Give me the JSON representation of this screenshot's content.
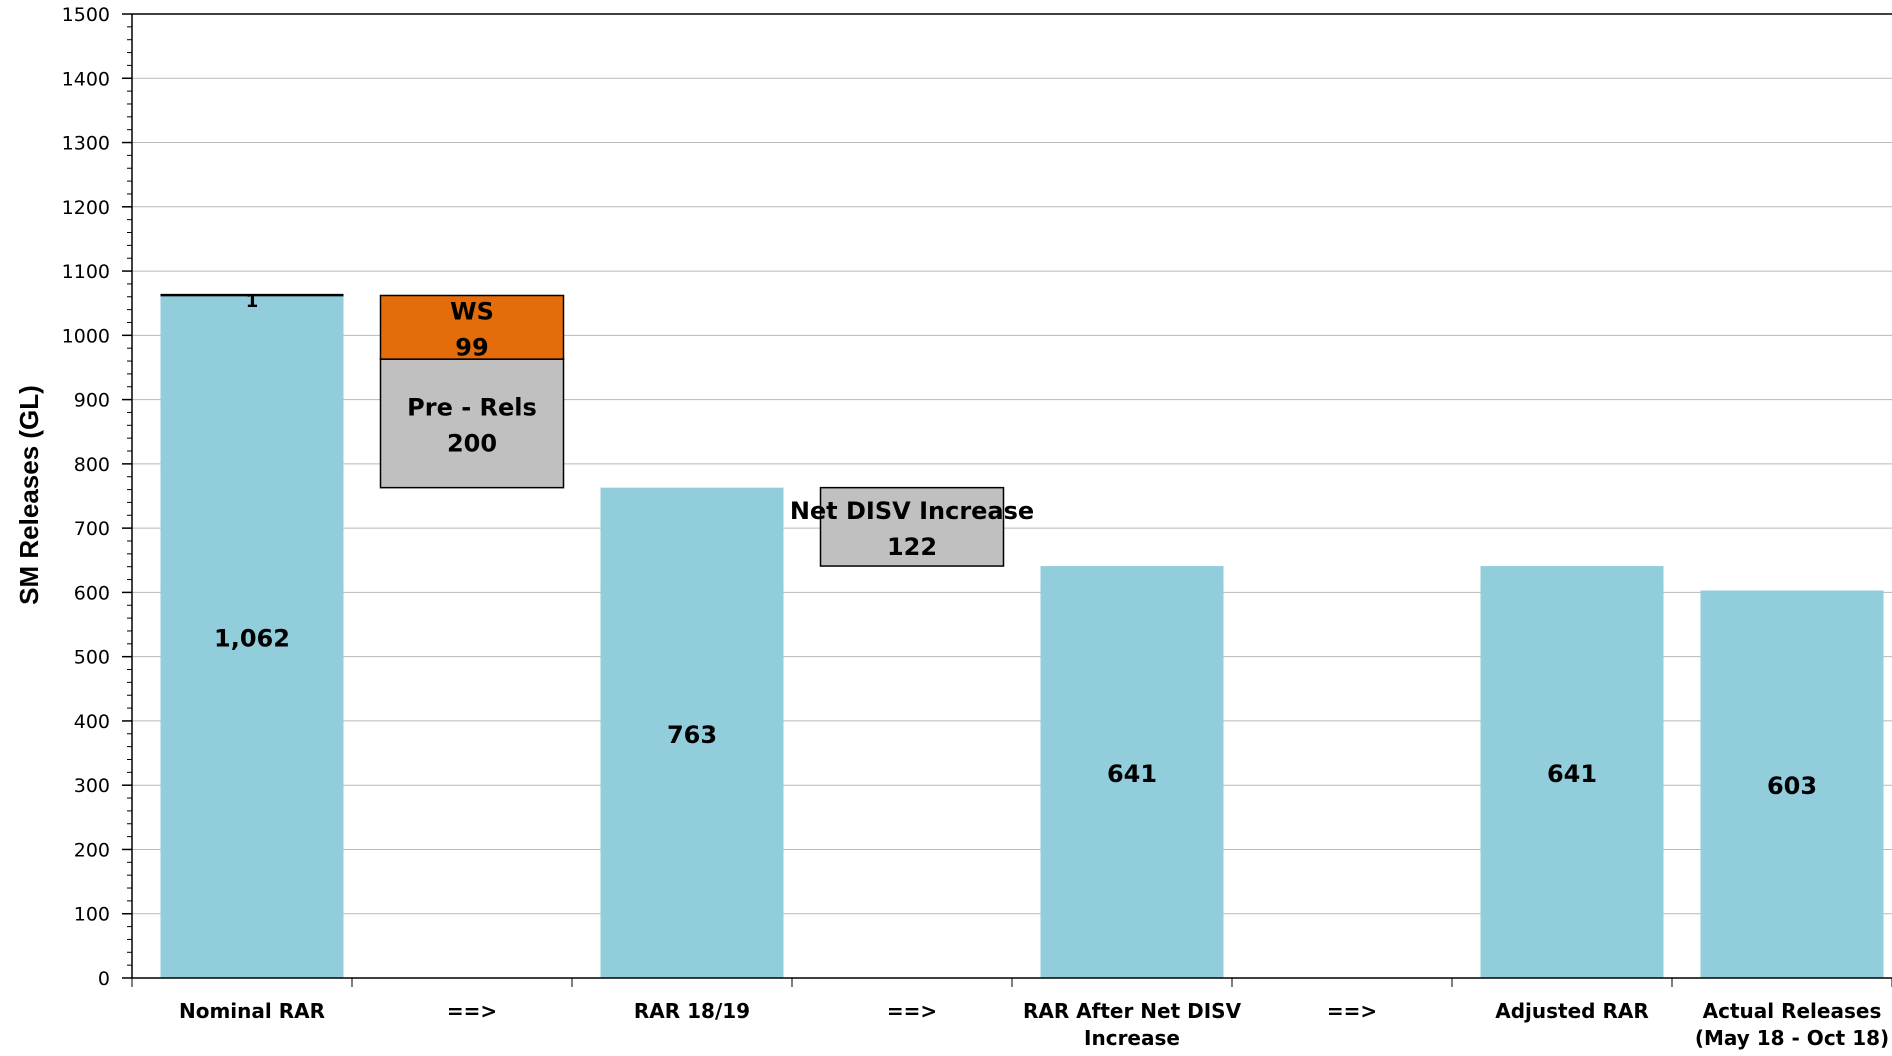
{
  "chart_data": {
    "type": "bar",
    "title": "",
    "xlabel": "",
    "ylabel": "SM Releases (GL)",
    "ylim": [
      0,
      1500
    ],
    "ytick_step": 100,
    "yticks": [
      "0",
      "100",
      "200",
      "300",
      "400",
      "500",
      "600",
      "700",
      "800",
      "900",
      "1000",
      "1100",
      "1200",
      "1300",
      "1400",
      "1500"
    ],
    "grid": true,
    "legend": "none",
    "categories": [
      [
        "Nominal RAR"
      ],
      [
        "==>"
      ],
      [
        "RAR 18/19"
      ],
      [
        "==>"
      ],
      [
        "RAR After Net DISV",
        "Increase"
      ],
      [
        "==>"
      ],
      [
        "Adjusted RAR"
      ],
      [
        "Actual Releases",
        "(May 18 - Oct 18)"
      ]
    ],
    "bars": [
      {
        "category_index": 0,
        "base": 0,
        "value": 1062,
        "label": "1,062",
        "color": "#92cddc",
        "kind": "total"
      },
      {
        "category_index": 2,
        "base": 0,
        "value": 763,
        "label": "763",
        "color": "#92cddc",
        "kind": "total"
      },
      {
        "category_index": 4,
        "base": 0,
        "value": 641,
        "label": "641",
        "color": "#92cddc",
        "kind": "total"
      },
      {
        "category_index": 6,
        "base": 0,
        "value": 641,
        "label": "641",
        "color": "#92cddc",
        "kind": "total"
      },
      {
        "category_index": 7,
        "base": 0,
        "value": 603,
        "label": "603",
        "color": "#92cddc",
        "kind": "total"
      }
    ],
    "steps": [
      {
        "category_index": 1,
        "base": 763,
        "value": 200,
        "lines": [
          "Pre - Rels",
          "200"
        ],
        "color": "#c0c0c0"
      },
      {
        "category_index": 1,
        "base": 963,
        "value": 99,
        "lines": [
          "WS",
          "99"
        ],
        "color": "#e46c0a"
      },
      {
        "category_index": 3,
        "base": 641,
        "value": 122,
        "lines": [
          "Net DISV Increase",
          "122"
        ],
        "color": "#c0c0c0"
      }
    ],
    "small_segments": [
      {
        "category_index": 0,
        "base": 1062,
        "value": 1,
        "label": "1",
        "color": "#000000"
      }
    ]
  }
}
